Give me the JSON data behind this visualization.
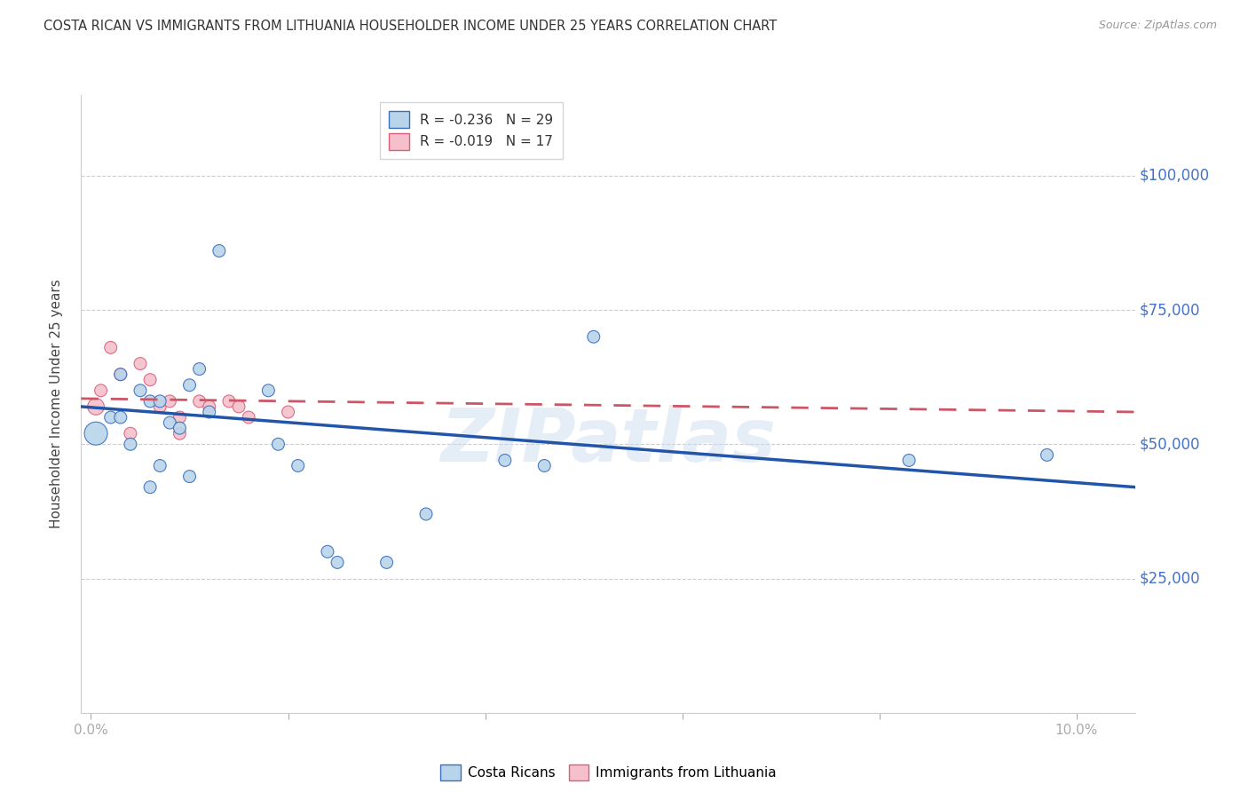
{
  "title": "COSTA RICAN VS IMMIGRANTS FROM LITHUANIA HOUSEHOLDER INCOME UNDER 25 YEARS CORRELATION CHART",
  "source": "Source: ZipAtlas.com",
  "ylabel": "Householder Income Under 25 years",
  "ytick_values": [
    25000,
    50000,
    75000,
    100000
  ],
  "ytick_labels": [
    "$25,000",
    "$50,000",
    "$75,000",
    "$100,000"
  ],
  "ylim": [
    0,
    115000
  ],
  "xlim": [
    -0.001,
    0.106
  ],
  "cr_color_face": "#b8d4ea",
  "cr_color_edge": "#3a6ebc",
  "lt_color_face": "#f5c0cb",
  "lt_color_edge": "#d9607a",
  "line_cr_color": "#2255aa",
  "line_lt_color": "#cc5566",
  "grid_color": "#cccccc",
  "bg_color": "#ffffff",
  "watermark": "ZIPatlas",
  "cr_R": "-0.236",
  "cr_N": "29",
  "lt_R": "-0.019",
  "lt_N": "17",
  "costa_rican_x": [
    0.0005,
    0.002,
    0.003,
    0.003,
    0.004,
    0.005,
    0.006,
    0.007,
    0.007,
    0.008,
    0.009,
    0.01,
    0.01,
    0.011,
    0.012,
    0.013,
    0.018,
    0.019,
    0.021,
    0.024,
    0.025,
    0.03,
    0.034,
    0.042,
    0.046,
    0.051,
    0.083,
    0.097,
    0.006
  ],
  "costa_rican_y": [
    52000,
    55000,
    55000,
    63000,
    50000,
    60000,
    58000,
    58000,
    46000,
    54000,
    53000,
    44000,
    61000,
    64000,
    56000,
    86000,
    60000,
    50000,
    46000,
    30000,
    28000,
    28000,
    37000,
    47000,
    46000,
    70000,
    47000,
    48000,
    42000
  ],
  "cr_sizes": [
    350,
    100,
    100,
    100,
    100,
    100,
    100,
    100,
    100,
    100,
    100,
    100,
    100,
    100,
    100,
    100,
    100,
    100,
    100,
    100,
    100,
    100,
    100,
    100,
    100,
    100,
    100,
    100,
    100
  ],
  "lithuania_x": [
    0.0005,
    0.001,
    0.002,
    0.003,
    0.004,
    0.005,
    0.006,
    0.007,
    0.008,
    0.009,
    0.009,
    0.011,
    0.012,
    0.014,
    0.015,
    0.016,
    0.02
  ],
  "lithuania_y": [
    57000,
    60000,
    68000,
    63000,
    52000,
    65000,
    62000,
    57000,
    58000,
    52000,
    55000,
    58000,
    57000,
    58000,
    57000,
    55000,
    56000
  ],
  "lt_sizes": [
    180,
    100,
    100,
    100,
    100,
    100,
    100,
    100,
    100,
    100,
    100,
    100,
    100,
    100,
    100,
    100,
    100
  ],
  "cr_line_x0": -0.001,
  "cr_line_x1": 0.106,
  "cr_line_y0": 57000,
  "cr_line_y1": 42000,
  "lt_line_x0": -0.001,
  "lt_line_x1": 0.106,
  "lt_line_y0": 58500,
  "lt_line_y1": 56000
}
